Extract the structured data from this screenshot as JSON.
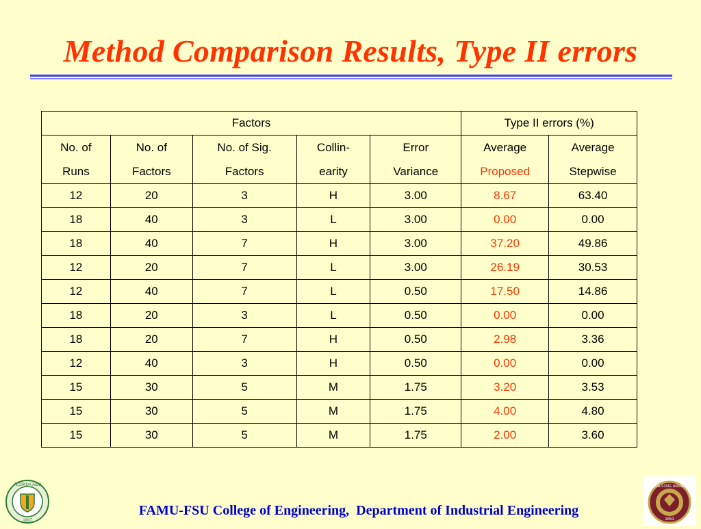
{
  "title": "Method Comparison Results, Type II errors",
  "table": {
    "group_headers": [
      "Factors",
      "Type II errors (%)"
    ],
    "columns": [
      [
        "No. of",
        "Runs"
      ],
      [
        "No. of",
        "Factors"
      ],
      [
        "No. of Sig.",
        "Factors"
      ],
      [
        "Collin-",
        "earity"
      ],
      [
        "Error",
        "Variance"
      ],
      [
        "Average",
        "Proposed"
      ],
      [
        "Average",
        "Stepwise"
      ]
    ],
    "rows": [
      [
        "12",
        "20",
        "3",
        "H",
        "3.00",
        "8.67",
        "63.40"
      ],
      [
        "18",
        "40",
        "3",
        "L",
        "3.00",
        "0.00",
        "0.00"
      ],
      [
        "18",
        "40",
        "7",
        "H",
        "3.00",
        "37.20",
        "49.86"
      ],
      [
        "12",
        "20",
        "7",
        "L",
        "3.00",
        "26.19",
        "30.53"
      ],
      [
        "12",
        "40",
        "7",
        "L",
        "0.50",
        "17.50",
        "14.86"
      ],
      [
        "18",
        "20",
        "3",
        "L",
        "0.50",
        "0.00",
        "0.00"
      ],
      [
        "18",
        "20",
        "7",
        "H",
        "0.50",
        "2.98",
        "3.36"
      ],
      [
        "12",
        "40",
        "3",
        "H",
        "0.50",
        "0.00",
        "0.00"
      ],
      [
        "15",
        "30",
        "5",
        "M",
        "1.75",
        "3.20",
        "3.53"
      ],
      [
        "15",
        "30",
        "5",
        "M",
        "1.75",
        "4.00",
        "4.80"
      ],
      [
        "15",
        "30",
        "5",
        "M",
        "1.75",
        "2.00",
        "3.60"
      ]
    ]
  },
  "footer": "FAMU-FSU College of Engineering,  Department of Industrial Engineering",
  "logos": {
    "left": {
      "icon": "famu-seal-icon",
      "text_top": "FLORIDA A&M",
      "text_bottom": "1887"
    },
    "right": {
      "icon": "fsu-seal-icon",
      "text": "FLORIDA STATE UNIVERSITY",
      "year": "1851"
    }
  },
  "colors": {
    "background": "#ffffcc",
    "title": "#ff3300",
    "rule": "#3a3aff",
    "proposed": "#ff3300",
    "footer": "#0000cc"
  }
}
